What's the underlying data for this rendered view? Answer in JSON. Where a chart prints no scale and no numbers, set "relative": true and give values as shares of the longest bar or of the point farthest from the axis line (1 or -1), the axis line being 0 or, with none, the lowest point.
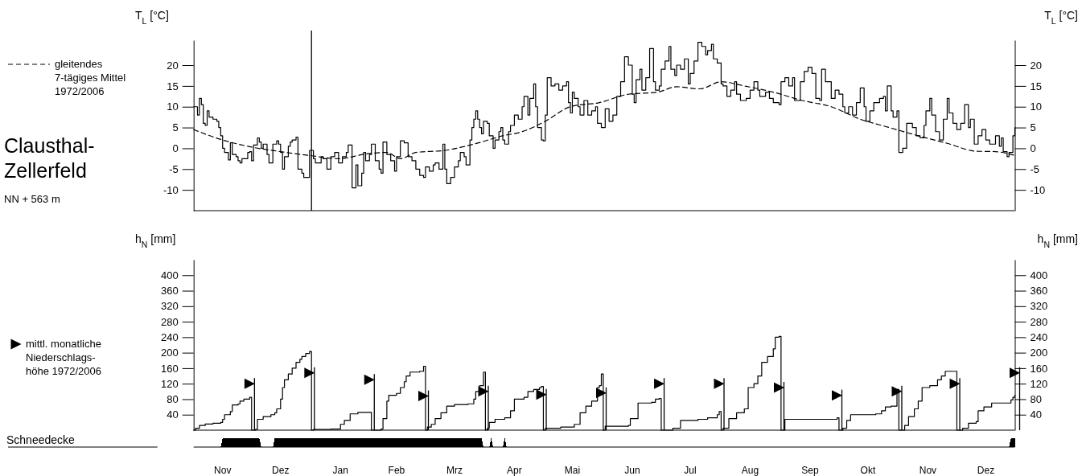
{
  "chart_data": [
    {
      "type": "step",
      "title": "Clausthal-\nZellerfeld",
      "annotations": [
        "NN + 563 m"
      ],
      "ylabel": "T$_{L}$ [°C]",
      "y2label": "T$_{L}$ [°C]",
      "xlim": [
        "2006-11-01",
        "2007-12-31"
      ],
      "ylim": [
        -15,
        26
      ],
      "yticks": [
        -10,
        -5,
        0,
        5,
        10,
        15,
        20
      ],
      "y2lim": [
        -15,
        26
      ],
      "y2ticks": [
        -10,
        -5,
        0,
        5,
        10,
        15,
        20
      ],
      "tick_labels": "y",
      "legend": "left",
      "ref_lines": [
        {
          "axis": "x",
          "value": "2007-01-01"
        }
      ],
      "series": [
        {
          "color": "#000000",
          "x": [
            "2006-11-01",
            "2006-11-03",
            "2006-11-04",
            "2006-11-05",
            "2006-11-06",
            "2006-11-07",
            "2006-11-08",
            "2006-11-09",
            "2006-11-11",
            "2006-11-13",
            "2006-11-14",
            "2006-11-15",
            "2006-11-16",
            "2006-11-17",
            "2006-11-19",
            "2006-11-20",
            "2006-11-21",
            "2006-11-23",
            "2006-11-24",
            "2006-11-25",
            "2006-11-26",
            "2006-11-29",
            "2006-11-30",
            "2006-12-01",
            "2006-12-02",
            "2006-12-04",
            "2006-12-05",
            "2006-12-06",
            "2006-12-07",
            "2006-12-09",
            "2006-12-10",
            "2006-12-12",
            "2006-12-14",
            "2006-12-15",
            "2006-12-16",
            "2006-12-17",
            "2006-12-18",
            "2006-12-20",
            "2006-12-21",
            "2006-12-22",
            "2006-12-24",
            "2006-12-25",
            "2006-12-27",
            "2006-12-28",
            "2006-12-30",
            "2006-12-31",
            "2007-01-02",
            "2007-01-03",
            "2007-01-06",
            "2007-01-07",
            "2007-01-09",
            "2007-01-11",
            "2007-01-13",
            "2007-01-15",
            "2007-01-17",
            "2007-01-19",
            "2007-01-20",
            "2007-01-22",
            "2007-01-24",
            "2007-01-25",
            "2007-01-27",
            "2007-01-28",
            "2007-01-29",
            "2007-01-31",
            "2007-02-01",
            "2007-02-03",
            "2007-02-05",
            "2007-02-06",
            "2007-02-07",
            "2007-02-09",
            "2007-02-11",
            "2007-02-13",
            "2007-02-14",
            "2007-02-16",
            "2007-02-18",
            "2007-02-20",
            "2007-02-22",
            "2007-02-24",
            "2007-02-26",
            "2007-02-28",
            "2007-03-01",
            "2007-03-03",
            "2007-03-05",
            "2007-03-06",
            "2007-03-08",
            "2007-03-10",
            "2007-03-11",
            "2007-03-12",
            "2007-03-14",
            "2007-03-16",
            "2007-03-18",
            "2007-03-19",
            "2007-03-21",
            "2007-03-22",
            "2007-03-24",
            "2007-03-25",
            "2007-03-26",
            "2007-03-27",
            "2007-03-28",
            "2007-03-29",
            "2007-03-30",
            "2007-03-31",
            "2007-04-02",
            "2007-04-03",
            "2007-04-05",
            "2007-04-06",
            "2007-04-08",
            "2007-04-09",
            "2007-04-10",
            "2007-04-11",
            "2007-04-13",
            "2007-04-14",
            "2007-04-16",
            "2007-04-18",
            "2007-04-20",
            "2007-04-21",
            "2007-04-23",
            "2007-04-24",
            "2007-04-26",
            "2007-04-27",
            "2007-04-28",
            "2007-04-30",
            "2007-05-01",
            "2007-05-02",
            "2007-05-03",
            "2007-05-05",
            "2007-05-07",
            "2007-05-09",
            "2007-05-11",
            "2007-05-13",
            "2007-05-14",
            "2007-05-15",
            "2007-05-16",
            "2007-05-17",
            "2007-05-19",
            "2007-05-20",
            "2007-05-22",
            "2007-05-24",
            "2007-05-26",
            "2007-05-28",
            "2007-05-29",
            "2007-05-31",
            "2007-06-02",
            "2007-06-04",
            "2007-06-06",
            "2007-06-08",
            "2007-06-10",
            "2007-06-12",
            "2007-06-14",
            "2007-06-16",
            "2007-06-17",
            "2007-06-18",
            "2007-06-20",
            "2007-06-21",
            "2007-06-23",
            "2007-06-25",
            "2007-06-27",
            "2007-06-28",
            "2007-06-30",
            "2007-07-01",
            "2007-07-03",
            "2007-07-05",
            "2007-07-06",
            "2007-07-08",
            "2007-07-09",
            "2007-07-11",
            "2007-07-13",
            "2007-07-15",
            "2007-07-16",
            "2007-07-18",
            "2007-07-20",
            "2007-07-22",
            "2007-07-24",
            "2007-07-25",
            "2007-07-27",
            "2007-07-28",
            "2007-07-30",
            "2007-08-01",
            "2007-08-02",
            "2007-08-04",
            "2007-08-06",
            "2007-08-08",
            "2007-08-09",
            "2007-08-11",
            "2007-08-14",
            "2007-08-16",
            "2007-08-18",
            "2007-08-20",
            "2007-08-21",
            "2007-08-24",
            "2007-08-26",
            "2007-08-28",
            "2007-08-31",
            "2007-09-01",
            "2007-09-03",
            "2007-09-05",
            "2007-09-07",
            "2007-09-08",
            "2007-09-11",
            "2007-09-13",
            "2007-09-15",
            "2007-09-17",
            "2007-09-19",
            "2007-09-21",
            "2007-09-22",
            "2007-09-24",
            "2007-09-27",
            "2007-09-29",
            "2007-10-01",
            "2007-10-03",
            "2007-10-04",
            "2007-10-06",
            "2007-10-08",
            "2007-10-10",
            "2007-10-12",
            "2007-10-14",
            "2007-10-15",
            "2007-10-17",
            "2007-10-19",
            "2007-10-22",
            "2007-10-24",
            "2007-10-25",
            "2007-10-26",
            "2007-10-28",
            "2007-10-29",
            "2007-10-31",
            "2007-11-01",
            "2007-11-03",
            "2007-11-05",
            "2007-11-08",
            "2007-11-10",
            "2007-11-12",
            "2007-11-14",
            "2007-11-15",
            "2007-11-17",
            "2007-11-18",
            "2007-11-20",
            "2007-11-22",
            "2007-11-24",
            "2007-11-26",
            "2007-11-27",
            "2007-11-29",
            "2007-12-01",
            "2007-12-03",
            "2007-12-05",
            "2007-12-07",
            "2007-12-08",
            "2007-12-10",
            "2007-12-12",
            "2007-12-14",
            "2007-12-16",
            "2007-12-18",
            "2007-12-21",
            "2007-12-23",
            "2007-12-24",
            "2007-12-25",
            "2007-12-27",
            "2007-12-28",
            "2007-12-30",
            "2007-12-31"
          ],
          "values": [
            10,
            8,
            12,
            10.5,
            6,
            5.5,
            9,
            7.5,
            7,
            6.5,
            5,
            3,
            0,
            -1,
            -2.8,
            1.3,
            -1.5,
            -2,
            -3,
            -3.5,
            -2.5,
            -1,
            -0.8,
            -3,
            0.8,
            2.5,
            1.5,
            0,
            1,
            -1.5,
            -3.5,
            1,
            1.8,
            1,
            -1,
            -5,
            -2,
            0.5,
            1.5,
            2,
            2.7,
            -5,
            -6,
            -7,
            -7,
            -0.5,
            -2.5,
            -3.5,
            -2,
            -2.5,
            -5,
            -2,
            -1,
            -3.5,
            -2,
            -1,
            0.8,
            -9.5,
            -4,
            -9,
            -6,
            -1,
            -3,
            -1.5,
            1,
            -3,
            -5,
            -6,
            1.5,
            -1.5,
            -3,
            -5.5,
            -2,
            1.8,
            1.3,
            -2,
            -3,
            -5,
            -6.5,
            -7,
            -4.5,
            -5.5,
            -4,
            -3.5,
            -5,
            1,
            -5,
            -8.5,
            -7,
            -4.5,
            -3,
            -1,
            -2,
            -4,
            2,
            5,
            7,
            9,
            7,
            5,
            3.5,
            6.5,
            6,
            3,
            0,
            2,
            4,
            5,
            2,
            1,
            4,
            5.5,
            8,
            7,
            10,
            12.5,
            8,
            12,
            15.5,
            10,
            5,
            2,
            1.8,
            8,
            17,
            15,
            15.5,
            14,
            15,
            16,
            11,
            8.5,
            13.5,
            12,
            10,
            8,
            11.5,
            8,
            9,
            10,
            6,
            5,
            9.5,
            6.5,
            8,
            12.5,
            16,
            22,
            20,
            13,
            11,
            16.5,
            19,
            14,
            17,
            24,
            16,
            14,
            15,
            19,
            21,
            24.5,
            19,
            17.5,
            20,
            19,
            21.5,
            15.5,
            18,
            21,
            25.5,
            24.5,
            22.5,
            23.5,
            25,
            21.5,
            20.5,
            15.5,
            15,
            12.5,
            14,
            16,
            13,
            11.5,
            12,
            14,
            16,
            14,
            12.5,
            13.5,
            12,
            11,
            10.5,
            16,
            17,
            15,
            17,
            11.5,
            16,
            18.5,
            19.5,
            18,
            12,
            11.5,
            19,
            16,
            12,
            14,
            13,
            10,
            8.5,
            10,
            8,
            11,
            14.5,
            10,
            6.5,
            9,
            11,
            12,
            12.5,
            9,
            15,
            9,
            7.5,
            9,
            -1,
            0,
            6,
            5,
            3,
            2.5,
            5.5,
            9,
            12,
            8,
            4,
            2,
            7,
            12,
            8.5,
            6,
            4.5,
            6,
            10.5,
            5,
            7,
            1,
            3,
            4.5,
            2,
            1,
            3,
            0.5,
            2.5,
            -0.8,
            -2,
            -1,
            3,
            5
          ]
        },
        {
          "type": "line",
          "name": "gleitendes\n7-tägiges Mittel\n1972/2006",
          "color": "#000000",
          "line_style": "dashed",
          "x": [
            "2006-11-01",
            "2006-11-16",
            "2006-12-01",
            "2006-12-16",
            "2007-01-01",
            "2007-01-15",
            "2007-01-30",
            "2007-02-09",
            "2007-02-16",
            "2007-02-24",
            "2007-03-11",
            "2007-03-26",
            "2007-04-10",
            "2007-04-20",
            "2007-05-02",
            "2007-05-15",
            "2007-05-30",
            "2007-06-14",
            "2007-06-29",
            "2007-07-09",
            "2007-07-21",
            "2007-08-01",
            "2007-08-13",
            "2007-08-28",
            "2007-09-12",
            "2007-09-27",
            "2007-10-12",
            "2007-10-27",
            "2007-11-11",
            "2007-11-26",
            "2007-12-11",
            "2007-12-21",
            "2007-12-31"
          ],
          "values": [
            4.5,
            2,
            0.3,
            -0.8,
            -1.8,
            -2.5,
            -1.3,
            -1,
            -2.5,
            -1,
            -0.5,
            1,
            3,
            4,
            6.5,
            10,
            11,
            13,
            13.5,
            14.8,
            14.3,
            16,
            15,
            13.5,
            11.5,
            10,
            7,
            5,
            3,
            1.2,
            -0.7,
            -0.8,
            -1.7
          ]
        }
      ]
    },
    {
      "type": "step",
      "ylabel": "h$_{N}$ [mm]",
      "y2label": "h$_{N}$ [mm]",
      "xlim": [
        "2006-11-01",
        "2007-12-31"
      ],
      "ylim": [
        0,
        440
      ],
      "yticks": [
        40,
        80,
        120,
        160,
        200,
        240,
        280,
        320,
        360,
        400
      ],
      "y2lim": [
        0,
        440
      ],
      "y2ticks": [
        40,
        80,
        120,
        160,
        200,
        240,
        280,
        320,
        360,
        400
      ],
      "tick_labels": "y",
      "legend": "left",
      "series": [
        {
          "color": "#000000",
          "x": [
            "2006-11-01",
            "2006-11-02",
            "2006-11-04",
            "2006-11-07",
            "2006-11-11",
            "2006-11-15",
            "2006-11-16",
            "2006-11-17",
            "2006-11-20",
            "2006-11-21",
            "2006-11-24",
            "2006-11-25",
            "2006-11-27",
            "2006-11-30",
            "2006-12-01",
            "2006-12-03",
            "2006-12-04",
            "2006-12-07",
            "2006-12-11",
            "2006-12-13",
            "2006-12-14",
            "2006-12-16",
            "2006-12-17",
            "2006-12-18",
            "2006-12-20",
            "2006-12-22",
            "2006-12-24",
            "2006-12-26",
            "2006-12-27",
            "2006-12-29",
            "2006-12-31",
            "2007-01-01",
            "2007-01-02",
            "2007-01-11",
            "2007-01-16",
            "2007-01-18",
            "2007-01-21",
            "2007-01-25",
            "2007-02-01",
            "2007-02-06",
            "2007-02-07",
            "2007-02-09",
            "2007-02-10",
            "2007-02-14",
            "2007-02-16",
            "2007-02-18",
            "2007-02-19",
            "2007-02-21",
            "2007-02-26",
            "2007-02-28",
            "2007-03-01",
            "2007-03-02",
            "2007-03-04",
            "2007-03-06",
            "2007-03-09",
            "2007-03-12",
            "2007-03-16",
            "2007-03-23",
            "2007-03-26",
            "2007-03-27",
            "2007-03-29",
            "2007-03-31",
            "2007-04-01",
            "2007-04-02",
            "2007-04-03",
            "2007-04-06",
            "2007-04-11",
            "2007-04-14",
            "2007-04-16",
            "2007-04-21",
            "2007-04-23",
            "2007-04-26",
            "2007-04-29",
            "2007-04-30",
            "2007-05-01",
            "2007-05-02",
            "2007-05-10",
            "2007-05-17",
            "2007-05-20",
            "2007-05-23",
            "2007-05-26",
            "2007-05-29",
            "2007-05-30",
            "2007-05-31",
            "2007-06-01",
            "2007-06-02",
            "2007-06-14",
            "2007-06-15",
            "2007-06-19",
            "2007-06-26",
            "2007-06-28",
            "2007-06-30",
            "2007-07-01",
            "2007-07-07",
            "2007-07-11",
            "2007-07-20",
            "2007-07-25",
            "2007-07-30",
            "2007-07-31",
            "2007-08-01",
            "2007-08-02",
            "2007-08-05",
            "2007-08-09",
            "2007-08-13",
            "2007-08-15",
            "2007-08-18",
            "2007-08-20",
            "2007-08-22",
            "2007-08-25",
            "2007-08-28",
            "2007-08-29",
            "2007-08-31",
            "2007-09-01",
            "2007-09-03",
            "2007-09-30",
            "2007-10-01",
            "2007-10-03",
            "2007-10-05",
            "2007-10-07",
            "2007-10-20",
            "2007-10-23",
            "2007-10-25",
            "2007-10-28",
            "2007-10-31",
            "2007-11-01",
            "2007-11-04",
            "2007-11-06",
            "2007-11-09",
            "2007-11-11",
            "2007-11-13",
            "2007-11-17",
            "2007-11-21",
            "2007-11-23",
            "2007-11-25",
            "2007-12-01",
            "2007-12-04",
            "2007-12-07",
            "2007-12-11",
            "2007-12-12",
            "2007-12-15",
            "2007-12-19",
            "2007-12-29",
            "2007-12-30",
            "2007-12-31"
          ],
          "values": [
            0,
            5,
            12,
            16,
            18,
            20,
            28,
            40,
            48,
            65,
            68,
            75,
            80,
            85,
            0,
            2,
            28,
            35,
            40,
            45,
            55,
            80,
            110,
            130,
            145,
            160,
            175,
            183,
            190,
            198,
            203,
            0,
            2,
            3,
            15,
            25,
            42,
            46,
            0,
            3,
            30,
            75,
            90,
            95,
            110,
            125,
            140,
            150,
            152,
            165,
            0,
            8,
            15,
            30,
            45,
            62,
            66,
            68,
            80,
            100,
            115,
            150,
            0,
            5,
            20,
            28,
            32,
            50,
            80,
            85,
            100,
            105,
            110,
            113,
            0,
            5,
            8,
            15,
            45,
            62,
            75,
            110,
            115,
            145,
            0,
            10,
            12,
            30,
            70,
            72,
            80,
            82,
            0,
            5,
            25,
            28,
            32,
            40,
            48,
            0,
            5,
            30,
            45,
            55,
            110,
            120,
            140,
            175,
            190,
            210,
            240,
            242,
            0,
            28,
            32,
            0,
            5,
            25,
            40,
            42,
            50,
            60,
            62,
            105,
            0,
            12,
            35,
            55,
            75,
            110,
            115,
            130,
            140,
            152,
            0,
            5,
            18,
            22,
            50,
            60,
            70,
            78,
            85,
            90
          ]
        },
        {
          "type": "scatter",
          "name": "mittl. monatliche\nNiederschlags-\nhöhe 1972/2006",
          "color": "#000000",
          "marker": "triangle",
          "x": [
            "2006-11-30",
            "2006-12-31",
            "2007-01-31",
            "2007-02-28",
            "2007-03-31",
            "2007-04-30",
            "2007-05-31",
            "2007-06-30",
            "2007-07-31",
            "2007-08-31",
            "2007-09-30",
            "2007-10-31",
            "2007-11-30",
            "2007-12-31"
          ],
          "values": [
            120,
            148,
            130,
            88,
            100,
            92,
            96,
            120,
            120,
            110,
            90,
            100,
            120,
            148
          ]
        }
      ]
    },
    {
      "type": "area",
      "relative": true,
      "ylabel": "Schneedecke",
      "xlim": [
        "2006-11-01",
        "2007-12-31"
      ],
      "xticks": [
        {
          "value": "2006-11-16",
          "label": "Nov"
        },
        {
          "value": "2006-12-16",
          "label": "Dez"
        },
        {
          "value": "2007-01-16",
          "label": "Jan"
        },
        {
          "value": "2007-02-14",
          "label": "Feb"
        },
        {
          "value": "2007-03-16",
          "label": "Mrz"
        },
        {
          "value": "2007-04-16",
          "label": "Apr"
        },
        {
          "value": "2007-05-16",
          "label": "Mai"
        },
        {
          "value": "2007-06-16",
          "label": "Jun"
        },
        {
          "value": "2007-07-16",
          "label": "Jul"
        },
        {
          "value": "2007-08-16",
          "label": "Aug"
        },
        {
          "value": "2007-09-16",
          "label": "Sep"
        },
        {
          "value": "2007-10-16",
          "label": "Okt"
        },
        {
          "value": "2007-11-16",
          "label": "Nov"
        },
        {
          "value": "2007-12-16",
          "label": "Dez"
        }
      ],
      "tick_labels": "x",
      "series": [
        {
          "color": "#000000",
          "x": [
            "2006-11-01",
            "2006-11-15",
            "2006-11-16",
            "2006-12-05",
            "2006-12-06",
            "2006-12-12",
            "2006-12-13",
            "2007-03-30",
            "2007-03-31",
            "2007-04-03",
            "2007-04-04",
            "2007-04-05",
            "2007-04-10",
            "2007-04-11",
            "2007-04-12",
            "2007-12-28",
            "2007-12-29",
            "2007-12-31"
          ],
          "values": [
            0,
            0,
            1,
            1,
            0,
            0,
            1,
            1,
            0,
            0,
            1,
            0,
            0,
            1,
            0,
            0,
            1,
            1
          ]
        }
      ]
    }
  ]
}
